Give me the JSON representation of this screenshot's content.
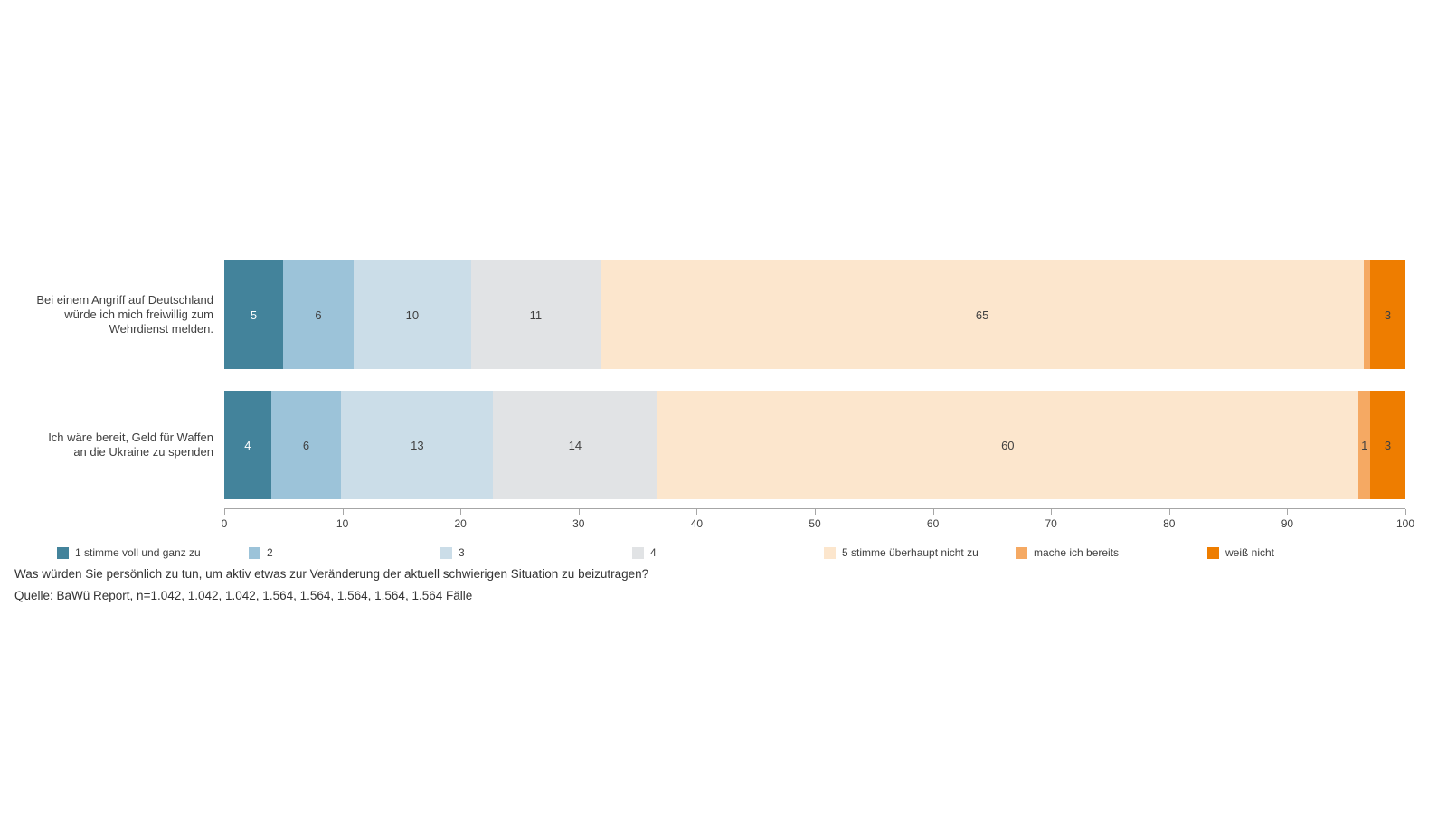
{
  "chart_data": {
    "type": "bar",
    "orientation": "horizontal",
    "stacked": true,
    "xlim": [
      0,
      100
    ],
    "ticks": [
      0,
      10,
      20,
      30,
      40,
      50,
      60,
      70,
      80,
      90,
      100
    ],
    "grid": false,
    "legend_position": "bottom",
    "categories": [
      "Bei einem Angriff auf Deutschland\nwürde ich mich freiwillig zum\nWehrdienst melden.",
      "Ich wäre bereit, Geld für Waffen\nan die Ukraine zu spenden"
    ],
    "series": [
      {
        "name": "1 stimme voll und ganz zu",
        "color": "#43839b",
        "label_color": "#ffffff",
        "values": [
          5,
          4
        ],
        "labels": [
          "5",
          "4"
        ]
      },
      {
        "name": "2",
        "color": "#9cc3d9",
        "label_color": "#404040",
        "values": [
          6,
          6
        ],
        "labels": [
          "6",
          "6"
        ]
      },
      {
        "name": "3",
        "color": "#cbdde8",
        "label_color": "#404040",
        "values": [
          10,
          13
        ],
        "labels": [
          "10",
          "13"
        ]
      },
      {
        "name": "4",
        "color": "#e1e3e5",
        "label_color": "#404040",
        "values": [
          11,
          14
        ],
        "labels": [
          "11",
          "14"
        ]
      },
      {
        "name": "5 stimme überhaupt nicht zu",
        "color": "#fce6cd",
        "label_color": "#404040",
        "values": [
          65,
          60
        ],
        "labels": [
          "65",
          "60"
        ]
      },
      {
        "name": "mache ich bereits",
        "color": "#f5a963",
        "label_color": "#404040",
        "values": [
          0.5,
          1
        ],
        "labels": [
          "",
          "1"
        ]
      },
      {
        "name": "weiß nicht",
        "color": "#ee7d00",
        "label_color": "#404040",
        "values": [
          3,
          3
        ],
        "labels": [
          "3",
          "3"
        ]
      }
    ],
    "footnotes": [
      "Was würden Sie persönlich zu tun, um aktiv etwas zur Veränderung der aktuell schwierigen Situation zu beizutragen?",
      "Quelle: BaWü Report, n=1.042, 1.042, 1.042, 1.564, 1.564, 1.564, 1.564, 1.564 Fälle"
    ]
  }
}
